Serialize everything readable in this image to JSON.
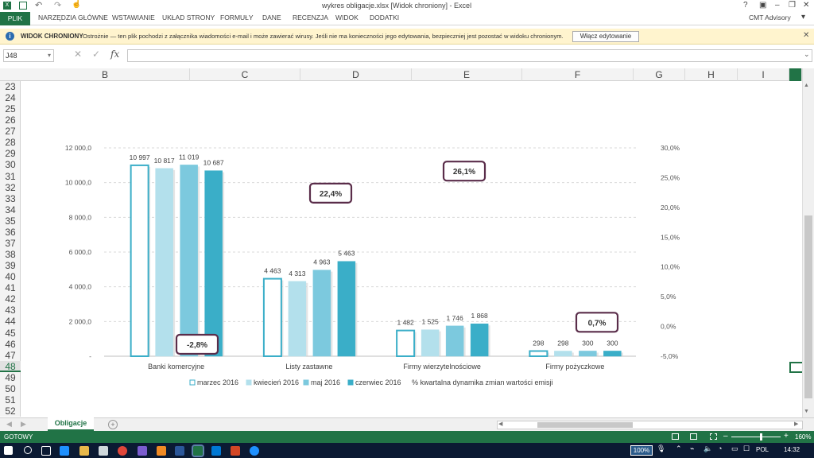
{
  "window": {
    "title": "wykres obligacje.xlsx  [Widok chroniony] - Excel",
    "controls": [
      "?",
      "▣",
      "–",
      "❐",
      "✕"
    ]
  },
  "ribbon": {
    "file_tab": "PLIK",
    "tabs": [
      "NARZĘDZIA GŁÓWNE",
      "WSTAWIANIE",
      "UKŁAD STRONY",
      "FORMUŁY",
      "DANE",
      "RECENZJA",
      "WIDOK",
      "DODATKI"
    ],
    "account": "CMT Advisory"
  },
  "protected_bar": {
    "label": "WIDOK CHRONIONY",
    "message": "Ostrożnie — ten plik pochodzi z załącznika wiadomości e-mail i może zawierać wirusy. Jeśli nie ma konieczności jego edytowania, bezpieczniej jest pozostać w widoku chronionym.",
    "button": "Włącz edytowanie"
  },
  "formula_bar": {
    "name_box": "J48",
    "fx": "fx",
    "value": ""
  },
  "columns": [
    "B",
    "C",
    "D",
    "E",
    "F",
    "G",
    "H",
    "I"
  ],
  "rows": [
    "23",
    "24",
    "25",
    "26",
    "27",
    "28",
    "29",
    "30",
    "31",
    "32",
    "33",
    "34",
    "35",
    "36",
    "37",
    "38",
    "39",
    "40",
    "41",
    "42",
    "43",
    "44",
    "45",
    "46",
    "47",
    "48",
    "49",
    "50",
    "51",
    "52"
  ],
  "chart_data": {
    "type": "bar",
    "categories": [
      "Banki komercyjne",
      "Listy zastawne",
      "Firmy wierzytelnościowe",
      "Firmy pożyczkowe"
    ],
    "series": [
      {
        "name": "marzec 2016",
        "values": [
          10997,
          4463,
          1482,
          298
        ],
        "labels": [
          "10 997",
          "4 463",
          "1 482",
          "298"
        ],
        "color": "#ffffff",
        "stroke": "#3aaec8"
      },
      {
        "name": "kwiecień 2016",
        "values": [
          10817,
          4313,
          1525,
          298
        ],
        "labels": [
          "10 817",
          "4 313",
          "1 525",
          "298"
        ],
        "color": "#b3e0ec",
        "stroke": "#b3e0ec"
      },
      {
        "name": "maj 2016",
        "values": [
          11019,
          4963,
          1746,
          300
        ],
        "labels": [
          "11 019",
          "4 963",
          "1 746",
          "300"
        ],
        "color": "#7cc9de",
        "stroke": "#7cc9de"
      },
      {
        "name": "czerwiec 2016",
        "values": [
          10687,
          5463,
          1868,
          300
        ],
        "labels": [
          "10 687",
          "5 463",
          "1 868",
          "300"
        ],
        "color": "#3aaec8",
        "stroke": "#3aaec8"
      }
    ],
    "secondary_series": {
      "name": "% kwartalna dynamika zmian wartości emisji",
      "values": [
        -2.8,
        22.4,
        26.1,
        0.7
      ],
      "labels": [
        "-2,8%",
        "22,4%",
        "26,1%",
        "0,7%"
      ]
    },
    "ylim": [
      0,
      12000
    ],
    "y_ticks": [
      "-",
      "2 000,0",
      "4 000,0",
      "6 000,0",
      "8 000,0",
      "10 000,0",
      "12 000,0"
    ],
    "y2lim": [
      -5,
      30
    ],
    "y2_ticks": [
      "-5,0%",
      "0,0%",
      "5,0%",
      "10,0%",
      "15,0%",
      "20,0%",
      "25,0%",
      "30,0%"
    ],
    "legend_position": "bottom",
    "grid": true
  },
  "sheet": {
    "active_tab": "Obligacje"
  },
  "status": {
    "state": "GOTOWY",
    "zoom": "160%"
  },
  "taskbar": {
    "zoom_badge": "100%",
    "lang": "POL",
    "time": "14:32"
  }
}
